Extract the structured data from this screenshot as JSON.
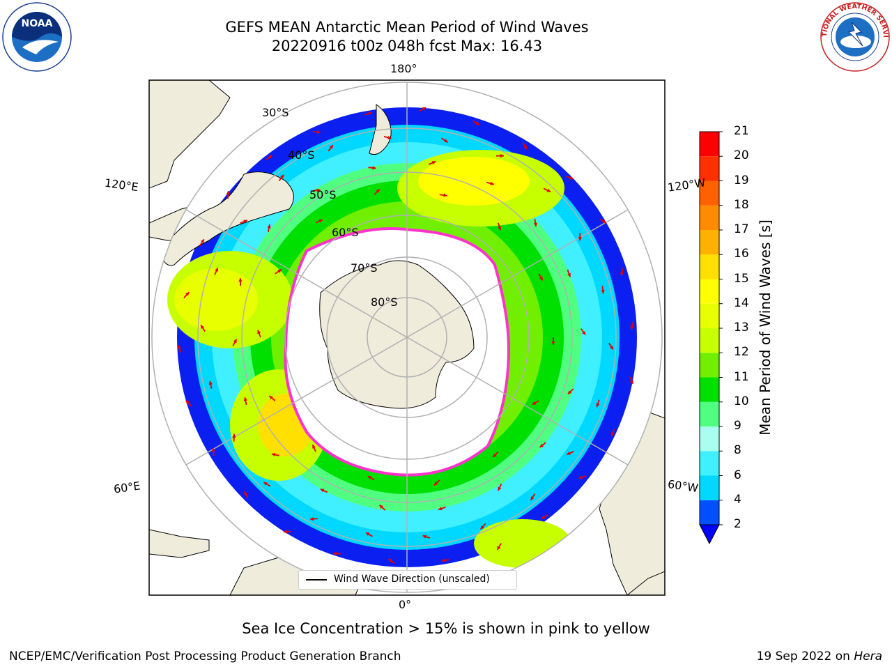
{
  "header": {
    "title": "GEFS MEAN Antarctic Mean Period of Wind Waves",
    "subtitle": "20220916 t00z 048h fcst   Max: 16.43"
  },
  "logos": {
    "left": {
      "name": "noaa-logo",
      "text": "NOAA"
    },
    "right": {
      "name": "nws-logo",
      "text": "NATIONAL WEATHER SERVICE"
    }
  },
  "map": {
    "longitude_labels": {
      "top": "180°",
      "bottom": "0°",
      "upper_left": "120°E",
      "upper_right": "120°W",
      "lower_left": "60°E",
      "lower_right": "60°W"
    },
    "latitude_labels": [
      "30°S",
      "40°S",
      "50°S",
      "60°S",
      "70°S",
      "80°S"
    ],
    "legend_label": "Wind Wave Direction (unscaled)",
    "colors": {
      "land": "#efecdc",
      "sea_ice_edge": "#ff33cc",
      "arrows": "#e60000",
      "grid": "#b0b0b0"
    }
  },
  "colorbar": {
    "label": "Mean Period of Wind Waves [s]",
    "ticks": [
      "2",
      "4",
      "6",
      "8",
      "9",
      "10",
      "11",
      "12",
      "13",
      "14",
      "15",
      "16",
      "17",
      "18",
      "19",
      "20",
      "21"
    ],
    "colors": [
      "#0050ff",
      "#00d8ff",
      "#40f0ff",
      "#a8fff0",
      "#50ff80",
      "#00e000",
      "#70f000",
      "#c8ff00",
      "#e8ff00",
      "#ffff00",
      "#ffe000",
      "#ffb000",
      "#ff8c00",
      "#ff6000",
      "#ff3000",
      "#ff0000"
    ],
    "extend_color": "#0000ff"
  },
  "notes": {
    "sea_ice": "Sea Ice Concentration > 15% is shown in pink to yellow"
  },
  "footer": {
    "left": "NCEP/EMC/Verification Post Processing Product Generation Branch",
    "right_prefix": "19 Sep 2022 on ",
    "right_host": "Hera"
  }
}
